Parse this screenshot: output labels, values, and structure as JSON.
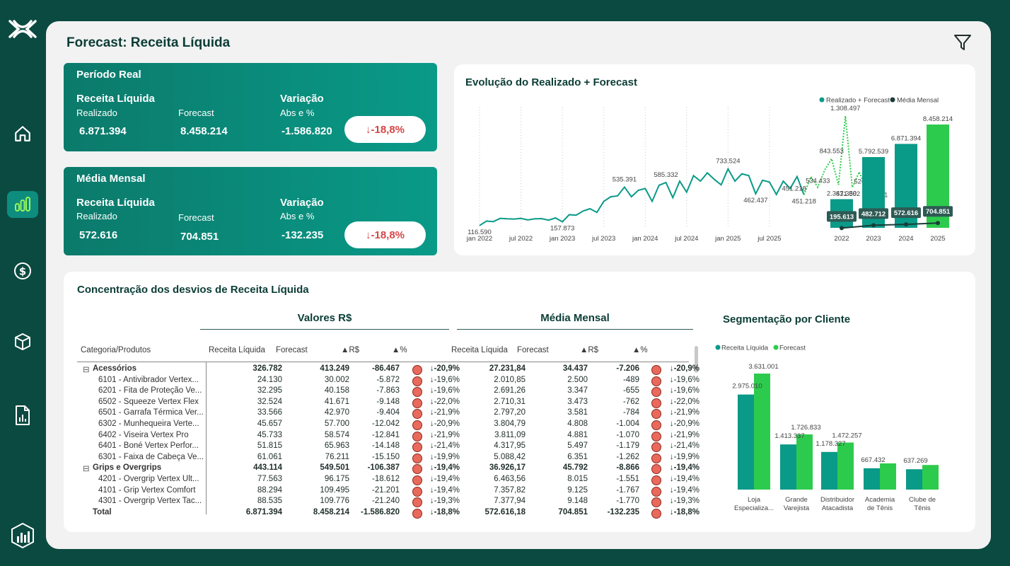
{
  "page_title": "Forecast: Receita Líquida",
  "colors": {
    "teal": "#0a9a88",
    "green": "#2dcb4d",
    "dark": "#0b4a41",
    "negative": "#d64545"
  },
  "sidebar": {
    "icons": [
      "logo-icon",
      "home-icon",
      "bar-chart-icon",
      "dollar-icon",
      "box-icon",
      "report-icon",
      "dashboard-logo-icon"
    ]
  },
  "kpi_periodo": {
    "title": "Período Real",
    "receita_label": "Receita Líquida",
    "realizado_label": "Realizado",
    "realizado_value": "6.871.394",
    "forecast_label": "Forecast",
    "forecast_value": "8.458.214",
    "variacao_label": "Variação",
    "abs_label": "Abs e %",
    "abs_value": "-1.586.820",
    "pct_value": "↓-18,8%"
  },
  "kpi_media": {
    "title": "Média Mensal",
    "receita_label": "Receita Líquida",
    "realizado_label": "Realizado",
    "realizado_value": "572.616",
    "forecast_label": "Forecast",
    "forecast_value": "704.851",
    "variacao_label": "Variação",
    "abs_label": "Abs e %",
    "abs_value": "-132.235",
    "pct_value": "↓-18,8%"
  },
  "evolucao": {
    "title": "Evolução do Realizado + Forecast",
    "legend": [
      "Realizado + Forecast",
      "Média Mensal"
    ],
    "line_x_ticks": [
      "jan 2022",
      "jul 2022",
      "jan 2023",
      "jul 2023",
      "jan 2024",
      "jul 2024",
      "jan 2025",
      "jul 2025"
    ],
    "line_labels": [
      "116.590",
      "157.873",
      "535.391",
      "585.332",
      "733.524",
      "462.437",
      "451.218",
      "451.218",
      "534.433",
      "843.553",
      "1.308.497",
      "531.802",
      "526.212",
      "518.901"
    ]
  },
  "chart_data": [
    {
      "type": "line",
      "title": "Evolução do Realizado + Forecast",
      "series": [
        {
          "name": "Realizado",
          "values": [
            116590,
            165000,
            160000,
            195000,
            190000,
            188000,
            195000,
            178000,
            190000,
            192000,
            175000,
            200000,
            157873,
            235000,
            230000,
            275000,
            300000,
            260000,
            380000,
            430000,
            440000,
            535391,
            430000,
            500000,
            520000,
            380000,
            555000,
            585332,
            420000,
            600000,
            480000,
            660000,
            600000,
            690000,
            620000,
            560000,
            733524,
            600000,
            680000,
            660000,
            462437,
            610000,
            590000,
            455000,
            600000,
            520000,
            650000,
            451218
          ]
        },
        {
          "name": "Forecast",
          "values": [
            null,
            null,
            null,
            null,
            null,
            null,
            null,
            null,
            null,
            null,
            null,
            null,
            null,
            null,
            null,
            null,
            null,
            null,
            null,
            null,
            null,
            null,
            null,
            null,
            null,
            null,
            null,
            null,
            null,
            null,
            null,
            null,
            null,
            null,
            null,
            null,
            null,
            null,
            null,
            null,
            null,
            null,
            null,
            null,
            null,
            null,
            null,
            451218,
            650000,
            534433,
            720000,
            843553,
            560000,
            1308497,
            531802,
            700000,
            526212,
            640000,
            518901
          ]
        }
      ],
      "x_ticks": [
        "jan 2022",
        "jul 2022",
        "jan 2023",
        "jul 2023",
        "jan 2024",
        "jul 2024",
        "jan 2025",
        "jul 2025"
      ]
    },
    {
      "type": "bar",
      "categories": [
        "2022",
        "2023",
        "2024",
        "2025"
      ],
      "series": [
        {
          "name": "Realizado + Forecast",
          "values": [
            2347359,
            5792539,
            6871394,
            8458214
          ]
        },
        {
          "name": "Média Mensal",
          "values": [
            195613,
            482712,
            572616,
            704851
          ]
        }
      ],
      "value_labels": [
        "2.347.359",
        "5.792.539",
        "6.871.394",
        "8.458.214"
      ],
      "media_labels": [
        "195.613",
        "482.712",
        "572.616",
        "704.851"
      ],
      "ylim": [
        0,
        8458214
      ]
    },
    {
      "type": "bar",
      "title": "Segmentação por Cliente",
      "categories": [
        "Loja Especializa...",
        "Grande Varejista",
        "Distribuidor Atacadista",
        "Academia de Tênis",
        "Clube de Tênis"
      ],
      "series": [
        {
          "name": "Receita Líquida",
          "values": [
            2975010,
            1413337,
            1178327,
            667432,
            637269
          ]
        },
        {
          "name": "Forecast",
          "values": [
            3631001,
            1726833,
            1472257,
            820000,
            770000
          ]
        }
      ],
      "value_labels_receita": [
        "2.975.010",
        "1.413.337",
        "1.178.327",
        "667.432",
        "637.269"
      ],
      "value_labels_forecast": [
        "3.631.001",
        "1.726.833",
        "1.472.257",
        "",
        ""
      ],
      "ylim": [
        0,
        3631001
      ]
    }
  ],
  "segmentacao": {
    "title": "Segmentação por Cliente",
    "legend": [
      "Receita Líquida",
      "Forecast"
    ],
    "cat_lines": [
      [
        "Loja",
        "Especializa..."
      ],
      [
        "Grande",
        "Varejista"
      ],
      [
        "Distribuidor",
        "Atacadista"
      ],
      [
        "Academia",
        "de Tênis"
      ],
      [
        "Clube de",
        "Tênis"
      ]
    ]
  },
  "table": {
    "title": "Concentração dos desvios de Receita Líquida",
    "group_valores": "Valores R$",
    "group_media": "Média Mensal",
    "headers": [
      "Categoria/Produtos",
      "Receita Líquida",
      "Forecast",
      "▲R$",
      "▲%",
      "Receita Líquida",
      "Forecast",
      "▲R$",
      "▲%"
    ],
    "rows": [
      {
        "b": true,
        "exp": "⊟",
        "name": "Acessórios",
        "v": [
          "326.782",
          "413.249",
          "-86.467",
          "↓-20,9%",
          "27.231,84",
          "34.437",
          "-7.206",
          "↓-20,9%"
        ]
      },
      {
        "b": false,
        "name": "6101 - Antivibrador Vertex...",
        "v": [
          "24.130",
          "30.002",
          "-5.872",
          "↓-19,6%",
          "2.010,85",
          "2.500",
          "-489",
          "↓-19,6%"
        ]
      },
      {
        "b": false,
        "name": "6201 - Fita de Proteção Ve...",
        "v": [
          "32.295",
          "40.158",
          "-7.863",
          "↓-19,6%",
          "2.691,26",
          "3.347",
          "-655",
          "↓-19,6%"
        ]
      },
      {
        "b": false,
        "name": "6502 - Squeeze Vertex Flex",
        "v": [
          "32.524",
          "41.671",
          "-9.148",
          "↓-22,0%",
          "2.710,31",
          "3.473",
          "-762",
          "↓-22,0%"
        ]
      },
      {
        "b": false,
        "name": "6501 - Garrafa Térmica Ver...",
        "v": [
          "33.566",
          "42.970",
          "-9.404",
          "↓-21,9%",
          "2.797,20",
          "3.581",
          "-784",
          "↓-21,9%"
        ]
      },
      {
        "b": false,
        "name": "6302 - Munhequeira Verte...",
        "v": [
          "45.657",
          "57.700",
          "-12.042",
          "↓-20,9%",
          "3.804,79",
          "4.808",
          "-1.004",
          "↓-20,9%"
        ]
      },
      {
        "b": false,
        "name": "6402 - Viseira Vertex Pro",
        "v": [
          "45.733",
          "58.574",
          "-12.841",
          "↓-21,9%",
          "3.811,09",
          "4.881",
          "-1.070",
          "↓-21,9%"
        ]
      },
      {
        "b": false,
        "name": "6401 - Boné Vertex Perfor...",
        "v": [
          "51.815",
          "65.963",
          "-14.148",
          "↓-21,4%",
          "4.317,95",
          "5.497",
          "-1.179",
          "↓-21,4%"
        ]
      },
      {
        "b": false,
        "name": "6301 - Faixa de Cabeça Ve...",
        "v": [
          "61.061",
          "76.211",
          "-15.150",
          "↓-19,9%",
          "5.088,42",
          "6.351",
          "-1.262",
          "↓-19,9%"
        ]
      },
      {
        "b": true,
        "exp": "⊟",
        "name": "Grips e Overgrips",
        "v": [
          "443.114",
          "549.501",
          "-106.387",
          "↓-19,4%",
          "36.926,17",
          "45.792",
          "-8.866",
          "↓-19,4%"
        ]
      },
      {
        "b": false,
        "name": "4201 - Overgrip Vertex Ult...",
        "v": [
          "77.563",
          "96.175",
          "-18.612",
          "↓-19,4%",
          "6.463,56",
          "8.015",
          "-1.551",
          "↓-19,4%"
        ]
      },
      {
        "b": false,
        "name": "4101 - Grip Vertex Comfort",
        "v": [
          "88.294",
          "109.495",
          "-21.201",
          "↓-19,4%",
          "7.357,82",
          "9.125",
          "-1.767",
          "↓-19,4%"
        ]
      },
      {
        "b": false,
        "name": "4301 - Overgrip Vertex Tac...",
        "v": [
          "88.535",
          "109.776",
          "-21.240",
          "↓-19,3%",
          "7.377,94",
          "9.148",
          "-1.770",
          "↓-19,3%"
        ]
      },
      {
        "b": true,
        "name": "Total",
        "v": [
          "6.871.394",
          "8.458.214",
          "-1.586.820",
          "↓-18,8%",
          "572.616,18",
          "704.851",
          "-132.235",
          "↓-18,8%"
        ]
      }
    ]
  }
}
